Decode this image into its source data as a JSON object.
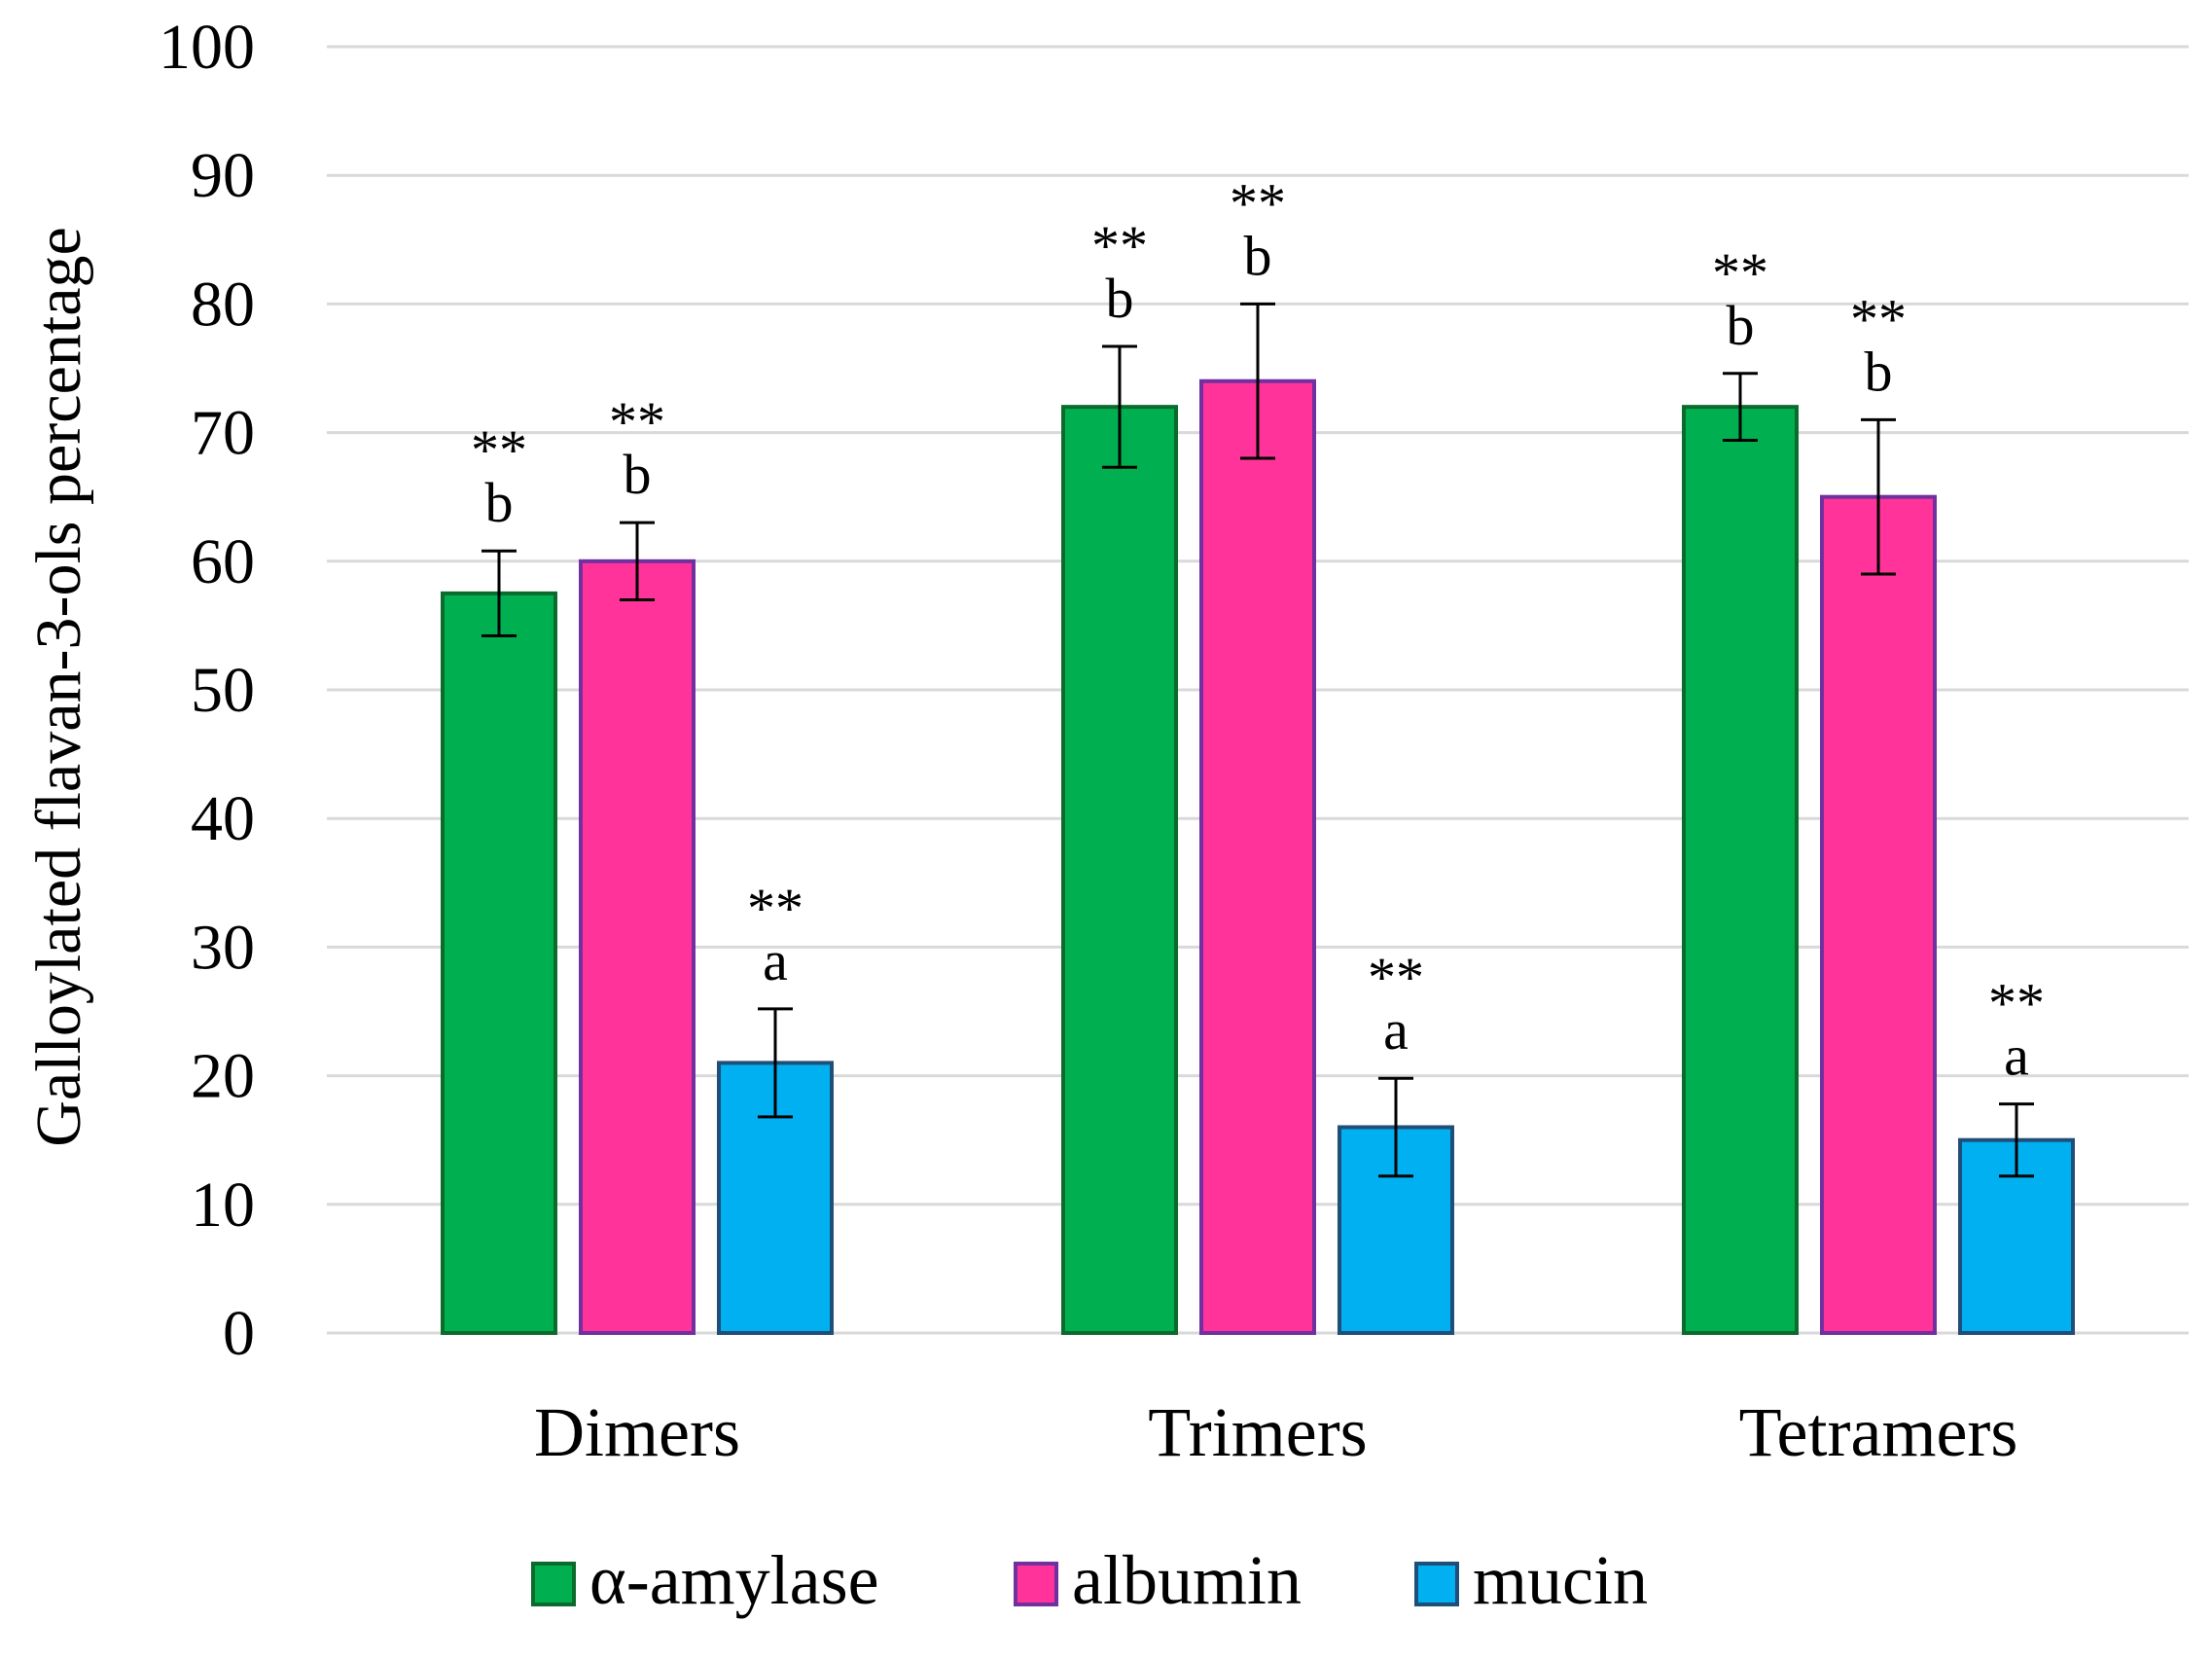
{
  "chart_data": {
    "type": "bar",
    "title": "",
    "xlabel": "",
    "ylabel": "Galloylated flavan-3-ols percentage",
    "ylim": [
      0,
      100
    ],
    "yticks": [
      0,
      10,
      20,
      30,
      40,
      50,
      60,
      70,
      80,
      90,
      100
    ],
    "grid": true,
    "legend_position": "bottom",
    "categories": [
      "Dimers",
      "Trimers",
      "Tetramers"
    ],
    "series": [
      {
        "name": "α-amylase",
        "fill": "#00b050",
        "stroke": "#0a6b2c",
        "values": [
          57.5,
          72,
          72
        ],
        "errors": [
          3.3,
          4.7,
          2.6
        ],
        "letters": [
          "b",
          "b",
          "b"
        ],
        "stars": [
          "**",
          "**",
          "**"
        ]
      },
      {
        "name": "albumin",
        "fill": "#ff3399",
        "stroke": "#7030a0",
        "values": [
          60,
          74,
          65
        ],
        "errors": [
          3,
          6,
          6
        ],
        "letters": [
          "b",
          "b",
          "b"
        ],
        "stars": [
          "**",
          "**",
          "**"
        ]
      },
      {
        "name": "mucin",
        "fill": "#00b0f0",
        "stroke": "#1f4e79",
        "values": [
          21,
          16,
          15
        ],
        "errors": [
          4.2,
          3.8,
          2.8
        ],
        "letters": [
          "a",
          "a",
          "a"
        ],
        "stars": [
          "**",
          "**",
          "**"
        ]
      }
    ]
  }
}
